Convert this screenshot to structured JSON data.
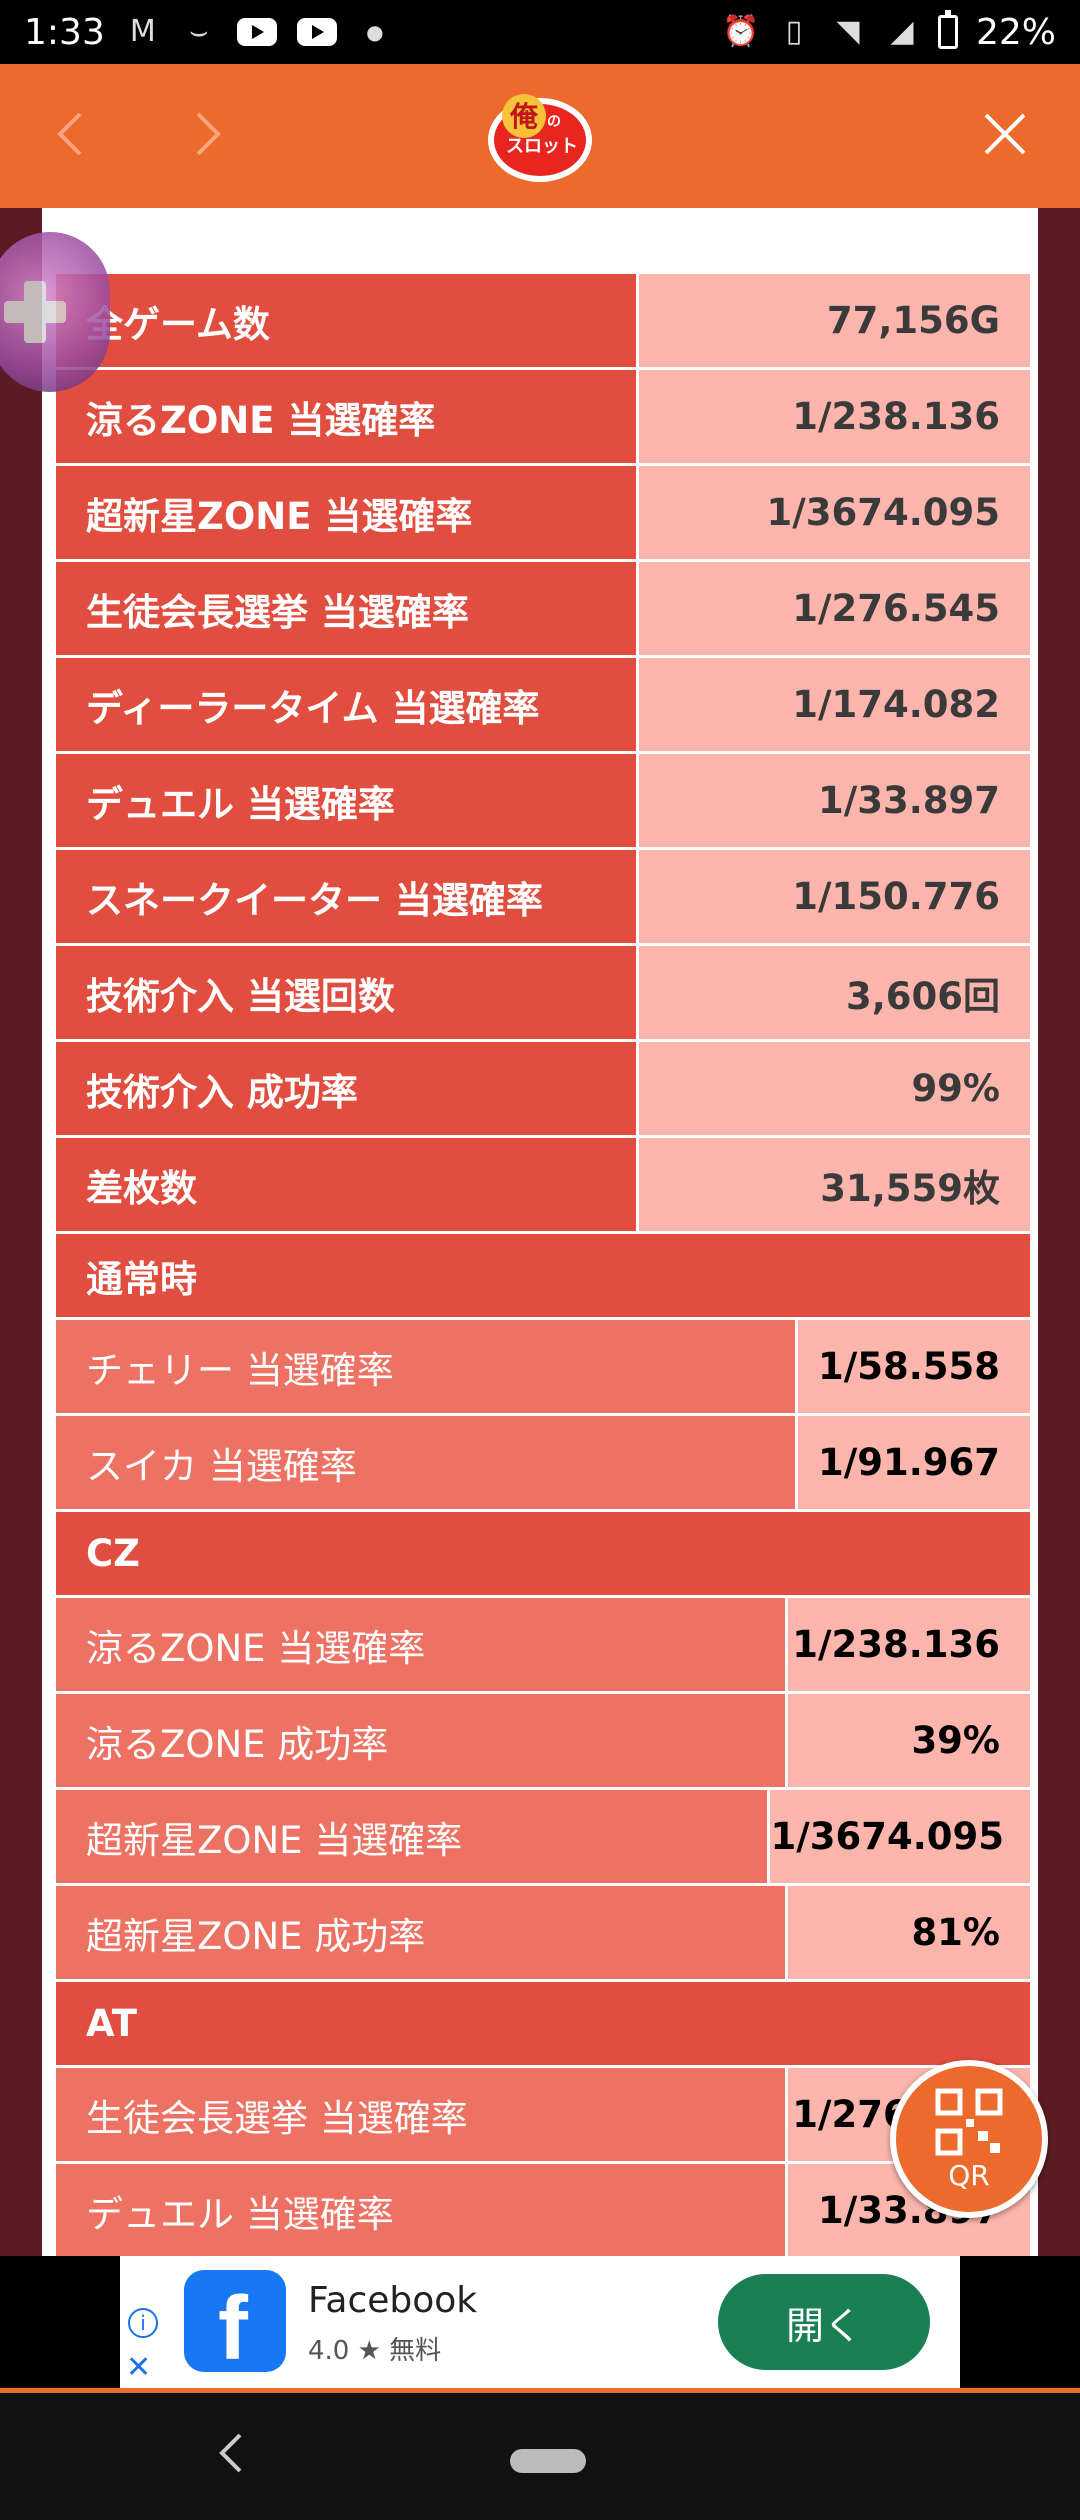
{
  "status_bar": {
    "time": "1:33",
    "battery": "22%",
    "network": "5"
  },
  "header": {
    "logo_text": "俺のスロット",
    "back_icon": "chevron-left-icon",
    "forward_icon": "chevron-right-icon",
    "close_icon": "close-icon"
  },
  "summary": [
    {
      "label": "全ゲーム数",
      "value": "77,156G"
    },
    {
      "label": "涼るZONE 当選確率",
      "value": "1/238.136"
    },
    {
      "label": "超新星ZONE 当選確率",
      "value": "1/3674.095"
    },
    {
      "label": "生徒会長選挙 当選確率",
      "value": "1/276.545"
    },
    {
      "label": "ディーラータイム 当選確率",
      "value": "1/174.082"
    },
    {
      "label": "デュエル 当選確率",
      "value": "1/33.897"
    },
    {
      "label": "スネークイーター 当選確率",
      "value": "1/150.776"
    },
    {
      "label": "技術介入 当選回数",
      "value": "3,606回"
    },
    {
      "label": "技術介入 成功率",
      "value": "99%"
    },
    {
      "label": "差枚数",
      "value": "31,559枚"
    }
  ],
  "sections": [
    {
      "title": "通常時",
      "rows": [
        {
          "label": "チェリー 当選確率",
          "value": "1/58.558"
        },
        {
          "label": "スイカ 当選確率",
          "value": "1/91.967"
        }
      ]
    },
    {
      "title": "CZ",
      "rows": [
        {
          "label": "涼るZONE 当選確率",
          "value": "1/238.136"
        },
        {
          "label": "涼るZONE 成功率",
          "value": "39%"
        },
        {
          "label": "超新星ZONE 当選確率",
          "value": "1/3674.095"
        },
        {
          "label": "超新星ZONE 成功率",
          "value": "81%"
        }
      ]
    },
    {
      "title": "AT",
      "rows": [
        {
          "label": "生徒会長選挙 当選確率",
          "value": "1/276.545"
        },
        {
          "label": "デュエル 当選確率",
          "value": "1/33.897"
        }
      ]
    }
  ],
  "qr_button": {
    "label": "QR"
  },
  "ad": {
    "app_name": "Facebook",
    "rating": "4.0 ★  無料",
    "cta": "開く",
    "info_icon": "info-icon",
    "close_icon": "close-icon"
  },
  "colors": {
    "header": "#ec6a2c",
    "label_dark": "#e14d3e",
    "label_light": "#ee7263",
    "value_bg": "#fbb5ad"
  }
}
